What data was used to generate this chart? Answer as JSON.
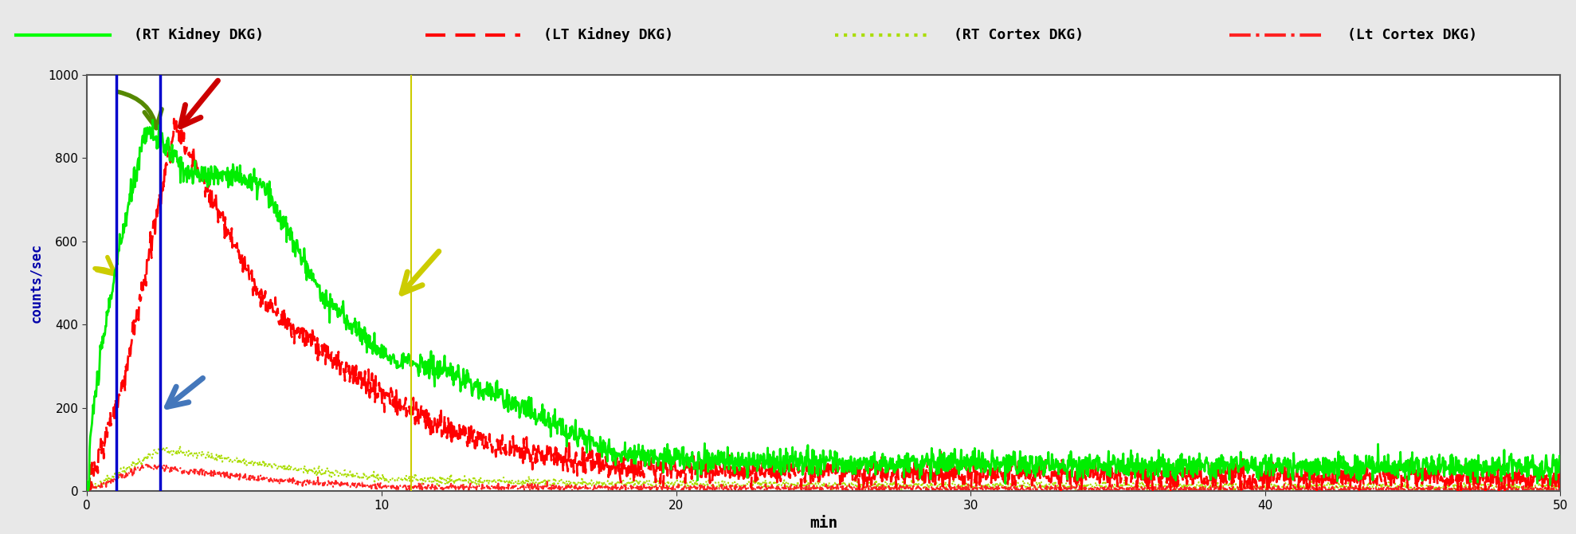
{
  "xlabel": "min",
  "ylabel": "counts/sec",
  "xlim": [
    0,
    50
  ],
  "ylim": [
    0,
    1000
  ],
  "yticks": [
    0,
    200,
    400,
    600,
    800,
    1000
  ],
  "xticks": [
    0,
    10,
    20,
    30,
    40,
    50
  ],
  "background_color": "#f0f0f0",
  "plot_bg_color": "#ffffff",
  "legend_labels": [
    "(RT Kidney DKG)",
    "(LT Kidney DKG)",
    "(RT Cortex DKG)",
    "(Lt Cortex DKG)"
  ],
  "vline1_x": 1.0,
  "vline2_x": 2.5,
  "vline_yellow_x": 11.0,
  "vline_color": "#0000cc",
  "vline_yellow_color": "#cccc00"
}
